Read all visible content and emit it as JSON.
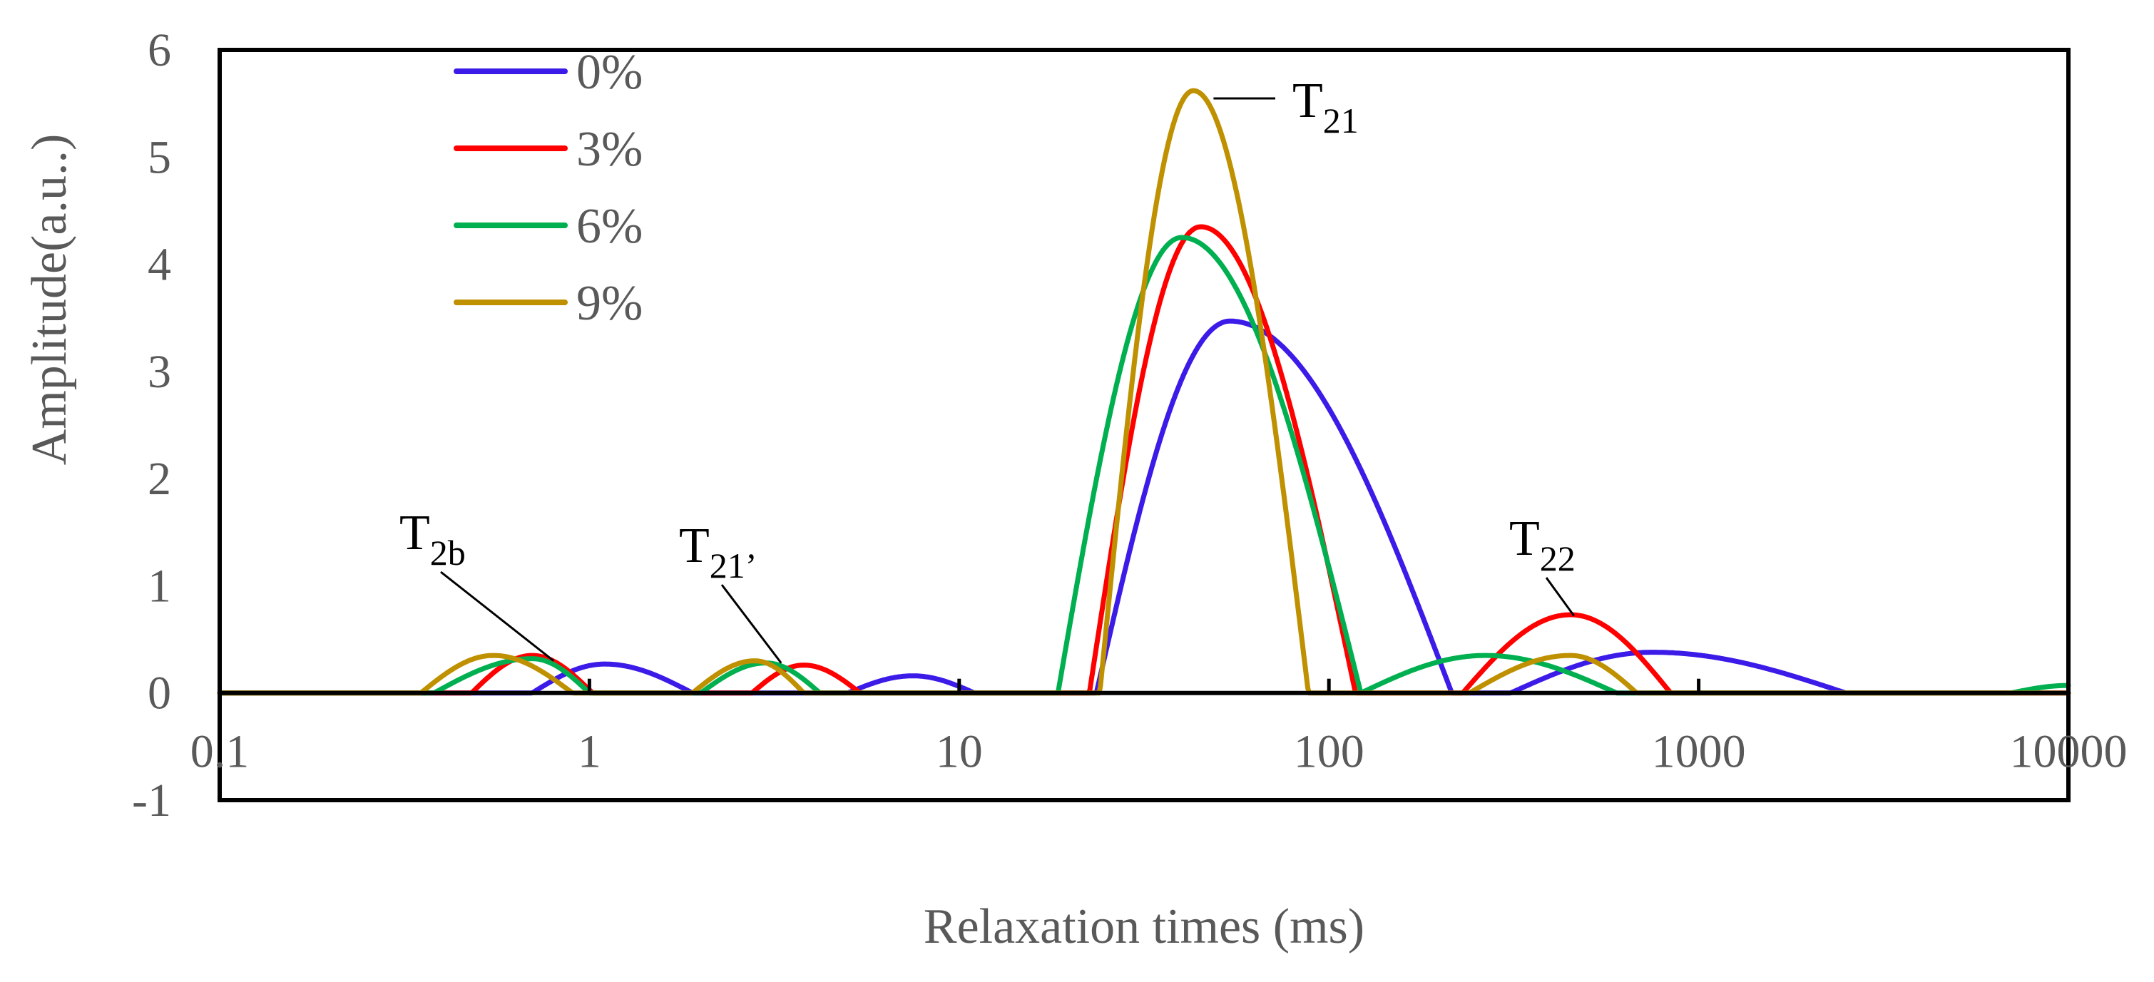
{
  "chart_data": {
    "type": "line",
    "title": "",
    "xlabel": "Relaxation times (ms)",
    "ylabel": "Amplitude(a.u..)",
    "xscale": "log",
    "xlim": [
      0.1,
      10000
    ],
    "ylim": [
      -1,
      6
    ],
    "grid": false,
    "legend_position": "top-left",
    "x_ticks": [
      {
        "value": 0.1,
        "label": "0.1"
      },
      {
        "value": 1,
        "label": "1"
      },
      {
        "value": 10,
        "label": "10"
      },
      {
        "value": 100,
        "label": "100"
      },
      {
        "value": 1000,
        "label": "1000"
      },
      {
        "value": 10000,
        "label": "10000"
      }
    ],
    "y_ticks": [
      {
        "value": -1,
        "label": "-1"
      },
      {
        "value": 0,
        "label": "0"
      },
      {
        "value": 1,
        "label": "1"
      },
      {
        "value": 2,
        "label": "2"
      },
      {
        "value": 3,
        "label": "3"
      },
      {
        "value": 4,
        "label": "4"
      },
      {
        "value": 5,
        "label": "5"
      },
      {
        "value": 6,
        "label": "6"
      }
    ],
    "series": [
      {
        "name": "0%",
        "color": "#3B1BE8",
        "peaks": [
          {
            "start": 0.7,
            "end": 1.9,
            "peak": 1.1,
            "amplitude": 0.27
          },
          {
            "start": 5.0,
            "end": 11.0,
            "peak": 7.5,
            "amplitude": 0.16
          },
          {
            "start": 23.5,
            "end": 215,
            "peak": 54,
            "amplitude": 3.47
          },
          {
            "start": 310,
            "end": 2500,
            "peak": 750,
            "amplitude": 0.38
          }
        ]
      },
      {
        "name": "3%",
        "color": "#FF0000",
        "peaks": [
          {
            "start": 0.48,
            "end": 1.02,
            "peak": 0.7,
            "amplitude": 0.35
          },
          {
            "start": 2.75,
            "end": 5.4,
            "peak": 3.8,
            "amplitude": 0.26
          },
          {
            "start": 22.5,
            "end": 118,
            "peak": 45,
            "amplitude": 4.35
          },
          {
            "start": 230,
            "end": 840,
            "peak": 450,
            "amplitude": 0.73
          }
        ]
      },
      {
        "name": "6%",
        "color": "#00B050",
        "peaks": [
          {
            "start": 0.38,
            "end": 1.0,
            "peak": 0.7,
            "amplitude": 0.32
          },
          {
            "start": 2.0,
            "end": 4.2,
            "peak": 3.0,
            "amplitude": 0.28
          },
          {
            "start": 18.5,
            "end": 122,
            "peak": 40,
            "amplitude": 4.25
          },
          {
            "start": 122,
            "end": 600,
            "peak": 265,
            "amplitude": 0.35
          },
          {
            "start": 7000,
            "end": 10000,
            "peak": 10000,
            "amplitude": 0.07
          }
        ]
      },
      {
        "name": "9%",
        "color": "#BF9000",
        "peaks": [
          {
            "start": 0.35,
            "end": 0.9,
            "peak": 0.55,
            "amplitude": 0.35
          },
          {
            "start": 1.9,
            "end": 3.8,
            "peak": 2.8,
            "amplitude": 0.3
          },
          {
            "start": 24,
            "end": 88,
            "peak": 43,
            "amplitude": 5.62
          },
          {
            "start": 240,
            "end": 680,
            "peak": 450,
            "amplitude": 0.35
          }
        ]
      }
    ],
    "annotations": [
      {
        "main": "T",
        "sub": "2b",
        "target_x": 0.8,
        "target_y": 0.3
      },
      {
        "main": "T",
        "sub": "21’",
        "target_x": 3.3,
        "target_y": 0.28
      },
      {
        "main": "T",
        "sub": "21",
        "target_x": 45,
        "target_y": 5.45
      },
      {
        "main": "T",
        "sub": "22",
        "target_x": 460,
        "target_y": 0.72
      }
    ]
  }
}
